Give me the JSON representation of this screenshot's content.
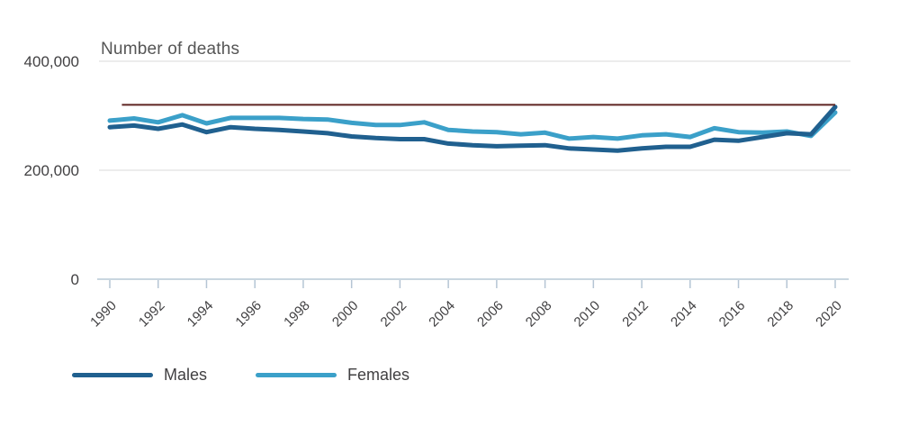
{
  "chart": {
    "title": "Number of deaths"
  },
  "chart_data": {
    "type": "line",
    "title": "Number of deaths",
    "xlabel": "",
    "ylabel": "Number of deaths",
    "xlim": [
      1990,
      2020
    ],
    "ylim": [
      0,
      400000
    ],
    "grid": "horizontal",
    "legend_position": "bottom-left",
    "x": [
      1990,
      1991,
      1992,
      1993,
      1994,
      1995,
      1996,
      1997,
      1998,
      1999,
      2000,
      2001,
      2002,
      2003,
      2004,
      2005,
      2006,
      2007,
      2008,
      2009,
      2010,
      2011,
      2012,
      2013,
      2014,
      2015,
      2016,
      2017,
      2018,
      2019,
      2020
    ],
    "series": [
      {
        "name": "Males",
        "color": "#20608f",
        "values": [
          279000,
          282000,
          276000,
          284000,
          270000,
          279000,
          276000,
          274000,
          271000,
          268000,
          262000,
          259000,
          257000,
          257000,
          249000,
          246000,
          244000,
          245000,
          246000,
          240000,
          238000,
          236000,
          240000,
          243000,
          243000,
          256000,
          254000,
          261000,
          268000,
          266000,
          316000
        ]
      },
      {
        "name": "Females",
        "color": "#3ba0c9",
        "values": [
          291000,
          295000,
          288000,
          301000,
          286000,
          296000,
          296000,
          296000,
          294000,
          293000,
          287000,
          283000,
          283000,
          288000,
          274000,
          271000,
          270000,
          266000,
          269000,
          258000,
          261000,
          258000,
          264000,
          266000,
          261000,
          277000,
          270000,
          269000,
          271000,
          263000,
          306000
        ]
      }
    ],
    "reference_line": {
      "value": 320000,
      "x_start": 1990.5,
      "x_end": 2020,
      "color": "#5e2422"
    },
    "y_ticks": [
      {
        "value": 0,
        "label": "0"
      },
      {
        "value": 200000,
        "label": "200,000"
      },
      {
        "value": 400000,
        "label": "400,000"
      }
    ],
    "x_tick_years": [
      1990,
      1992,
      1994,
      1996,
      1998,
      2000,
      2002,
      2004,
      2006,
      2008,
      2010,
      2012,
      2014,
      2016,
      2018,
      2020
    ],
    "x_tick_labels": [
      "1990",
      "1992",
      "1994",
      "1996",
      "1998",
      "2000",
      "2002",
      "2004",
      "2006",
      "2008",
      "2010",
      "2012",
      "2014",
      "2016",
      "2018",
      "2020"
    ]
  }
}
